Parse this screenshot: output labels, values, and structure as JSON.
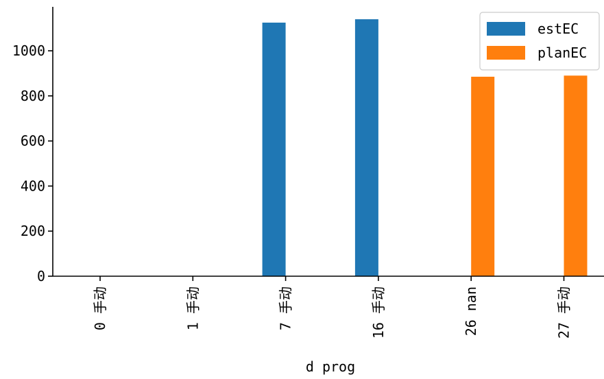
{
  "chart_data": {
    "type": "bar",
    "title": "",
    "xlabel": "d prog",
    "ylabel": "",
    "categories": [
      "0 手动",
      "1 手动",
      "7 手动",
      "16 手动",
      "26 nan",
      "27 手动"
    ],
    "series": [
      {
        "name": "estEC",
        "values": [
          0,
          0,
          1125,
          1140,
          null,
          null
        ],
        "color": "#1f77b4"
      },
      {
        "name": "planEC",
        "values": [
          null,
          null,
          null,
          null,
          885,
          890
        ],
        "color": "#ff7f0e"
      }
    ],
    "ylim": [
      0,
      1195
    ],
    "yticks": [
      0,
      200,
      400,
      600,
      800,
      1000
    ],
    "ytick_labels": [
      "0",
      "200",
      "400",
      "600",
      "800",
      "1000"
    ],
    "grid": false,
    "legend_position": "top-right"
  }
}
